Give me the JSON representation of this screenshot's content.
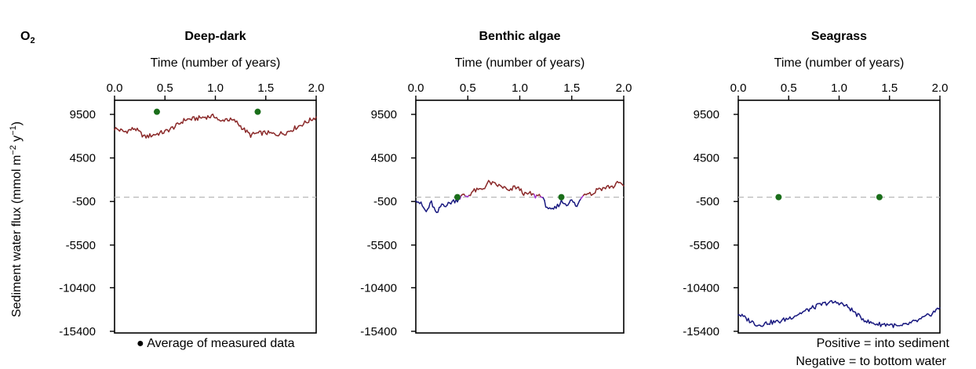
{
  "figure": {
    "species_label": "O",
    "species_subscript": "2",
    "ylabel_main": "Sediment water flux (mmol m",
    "ylabel_sup1": "−2",
    "ylabel_mid": " y",
    "ylabel_sup2": "−1",
    "ylabel_end": ")",
    "legend_measured": "● Average of measured data",
    "legend_positive": "Positive = into sediment",
    "legend_negative": "Negative = to bottom water",
    "colors": {
      "positive": "#8b2a2a",
      "negative": "#1a1a80",
      "transition": "#a030d0",
      "measured": "#1a6e1a",
      "zero_line": "#bdbdbd",
      "legend_measured": "#1a6e1a",
      "legend_positive": "#8b2a2a",
      "legend_negative": "#1a1a80"
    }
  },
  "chart_data": [
    {
      "type": "line",
      "title": "Deep-dark",
      "xlabel": "Time (number of years)",
      "ylabel": "Sediment water flux (mmol m−2 y−1)",
      "x_axis_position": "top",
      "xlim": [
        0,
        2
      ],
      "ylim": [
        -15400,
        9500
      ],
      "x_ticks": [
        "0.0",
        "0.5",
        "1.0",
        "1.5",
        "2.0"
      ],
      "y_ticks": [
        "9500",
        "4500",
        "-500",
        "-5500",
        "-10400",
        "-15400"
      ],
      "zero_line": 0,
      "flux": {
        "x": [
          0,
          0.1,
          0.2,
          0.3,
          0.4,
          0.5,
          0.6,
          0.7,
          0.8,
          0.9,
          1.0,
          1.05,
          1.1,
          1.2,
          1.3,
          1.35,
          1.4,
          1.5,
          1.6,
          1.7,
          1.8,
          1.9,
          2.0
        ],
        "y": [
          7900,
          7500,
          7900,
          6900,
          7200,
          7500,
          8100,
          8900,
          9000,
          9200,
          9300,
          8600,
          9000,
          8700,
          7600,
          7100,
          7300,
          7400,
          7200,
          7400,
          8000,
          8600,
          9200
        ]
      },
      "measured": {
        "x": [
          0.42,
          1.42
        ],
        "y": [
          9800,
          9800
        ]
      }
    },
    {
      "type": "line",
      "title": "Benthic algae",
      "xlabel": "Time (number of years)",
      "ylabel": "",
      "x_axis_position": "top",
      "xlim": [
        0,
        2
      ],
      "ylim": [
        -15400,
        9500
      ],
      "x_ticks": [
        "0.0",
        "0.5",
        "1.0",
        "1.5",
        "2.0"
      ],
      "y_ticks": [
        "9500",
        "4500",
        "-500",
        "-5500",
        "-10400",
        "-15400"
      ],
      "zero_line": 0,
      "flux": {
        "x": [
          0,
          0.05,
          0.1,
          0.15,
          0.2,
          0.25,
          0.3,
          0.35,
          0.4,
          0.45,
          0.5,
          0.55,
          0.6,
          0.65,
          0.7,
          0.75,
          0.8,
          0.85,
          0.9,
          0.95,
          1.0,
          1.05,
          1.1,
          1.15,
          1.2,
          1.25,
          1.3,
          1.35,
          1.4,
          1.45,
          1.5,
          1.55,
          1.6,
          1.65,
          1.7,
          1.75,
          1.8,
          1.85,
          1.9,
          1.95,
          2.0
        ],
        "y": [
          -200,
          -800,
          -1700,
          -600,
          -2000,
          -800,
          -900,
          -500,
          -300,
          200,
          100,
          700,
          800,
          1000,
          1700,
          1500,
          1300,
          1100,
          600,
          1200,
          900,
          300,
          400,
          100,
          300,
          -900,
          -1600,
          -1200,
          -500,
          -800,
          -400,
          -1100,
          200,
          600,
          300,
          1000,
          1000,
          1200,
          1200,
          1700,
          1300
        ]
      },
      "measured": {
        "x": [
          0.4,
          1.4
        ],
        "y": [
          0,
          0
        ]
      }
    },
    {
      "type": "line",
      "title": "Seagrass",
      "xlabel": "Time (number of years)",
      "ylabel": "",
      "x_axis_position": "top",
      "xlim": [
        0,
        2
      ],
      "ylim": [
        -15400,
        9500
      ],
      "x_ticks": [
        "0.0",
        "0.5",
        "1.0",
        "1.5",
        "2.0"
      ],
      "y_ticks": [
        "9500",
        "4500",
        "-500",
        "-5500",
        "-10400",
        "-15400"
      ],
      "zero_line": 0,
      "flux": {
        "x": [
          0,
          0.1,
          0.2,
          0.3,
          0.4,
          0.5,
          0.6,
          0.7,
          0.8,
          0.9,
          1.0,
          1.1,
          1.2,
          1.3,
          1.4,
          1.5,
          1.6,
          1.7,
          1.8,
          1.9,
          2.0
        ],
        "y": [
          -13400,
          -14100,
          -14700,
          -14400,
          -14300,
          -13900,
          -13400,
          -12900,
          -12400,
          -12100,
          -12100,
          -12700,
          -13700,
          -14400,
          -14600,
          -14600,
          -14900,
          -14500,
          -14100,
          -13500,
          -12700
        ]
      },
      "measured": {
        "x": [
          0.4,
          1.4
        ],
        "y": [
          0,
          0
        ]
      }
    }
  ]
}
